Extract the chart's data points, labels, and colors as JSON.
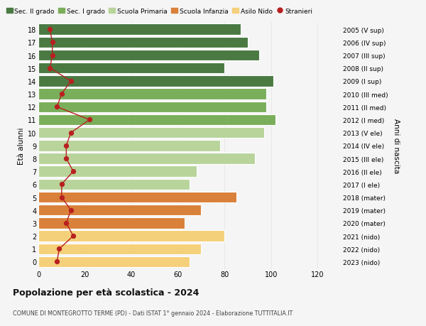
{
  "ages": [
    18,
    17,
    16,
    15,
    14,
    13,
    12,
    11,
    10,
    9,
    8,
    7,
    6,
    5,
    4,
    3,
    2,
    1,
    0
  ],
  "bar_values": [
    87,
    90,
    95,
    80,
    101,
    98,
    98,
    102,
    97,
    78,
    93,
    68,
    65,
    85,
    70,
    63,
    80,
    70,
    65
  ],
  "stranieri": [
    5,
    6,
    6,
    5,
    14,
    10,
    8,
    22,
    14,
    12,
    12,
    15,
    10,
    10,
    14,
    12,
    15,
    9,
    8
  ],
  "right_labels": [
    "2005 (V sup)",
    "2006 (IV sup)",
    "2007 (III sup)",
    "2008 (II sup)",
    "2009 (I sup)",
    "2010 (III med)",
    "2011 (II med)",
    "2012 (I med)",
    "2013 (V ele)",
    "2014 (IV ele)",
    "2015 (III ele)",
    "2016 (II ele)",
    "2017 (I ele)",
    "2018 (mater)",
    "2019 (mater)",
    "2020 (mater)",
    "2021 (nido)",
    "2022 (nido)",
    "2023 (nido)"
  ],
  "bar_colors": [
    "#4a7a42",
    "#4a7a42",
    "#4a7a42",
    "#4a7a42",
    "#4a7a42",
    "#7aae5a",
    "#7aae5a",
    "#7aae5a",
    "#b8d49a",
    "#b8d49a",
    "#b8d49a",
    "#b8d49a",
    "#b8d49a",
    "#d9813a",
    "#d9813a",
    "#d9813a",
    "#f5d07a",
    "#f5d07a",
    "#f5d07a"
  ],
  "legend_labels": [
    "Sec. II grado",
    "Sec. I grado",
    "Scuola Primaria",
    "Scuola Infanzia",
    "Asilo Nido",
    "Stranieri"
  ],
  "legend_colors": [
    "#4a7a42",
    "#7aae5a",
    "#b8d49a",
    "#d9813a",
    "#f5d07a",
    "#c0392b"
  ],
  "stranieri_color": "#b82020",
  "ylabel_left": "Età alunni",
  "ylabel_right": "Anni di nascita",
  "title_main": "Popolazione per età scolastica - 2024",
  "title_sub": "COMUNE DI MONTEGROTTO TERME (PD) - Dati ISTAT 1° gennaio 2024 - Elaborazione TUTTITALIA.IT",
  "xlim": [
    0,
    130
  ],
  "xticks": [
    0,
    20,
    40,
    60,
    80,
    100,
    120
  ],
  "bg_color": "#f5f5f5",
  "bar_height": 0.85,
  "grid_color": "#ffffff"
}
